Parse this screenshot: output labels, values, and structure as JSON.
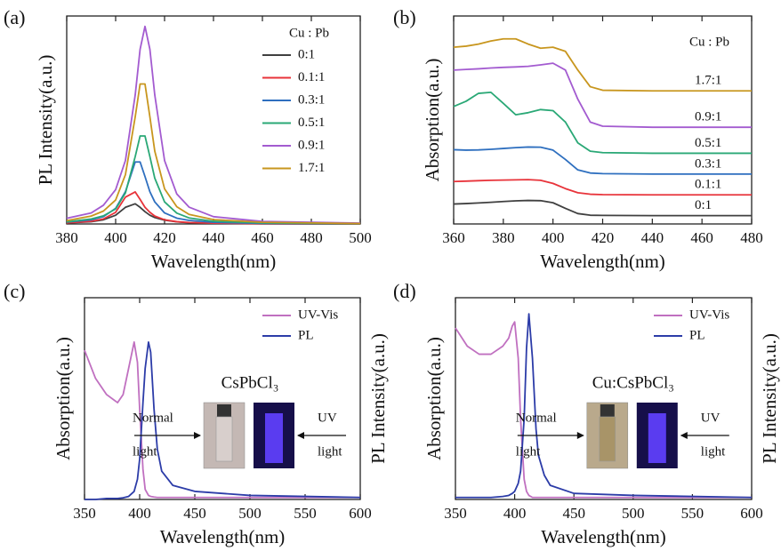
{
  "chart_data": [
    {
      "type": "line",
      "panel_label": "(a)",
      "xlabel": "Wavelength(nm)",
      "ylabel": "PL Intensity(a.u.)",
      "legend": "upper right",
      "legend_title": "Cu : Pb",
      "xlim": [
        380,
        500
      ],
      "xticks": [
        380,
        400,
        420,
        440,
        460,
        480,
        500
      ],
      "ylim": [
        0,
        100
      ],
      "x": [
        380,
        390,
        395,
        400,
        404,
        408,
        410,
        412,
        414,
        416,
        420,
        425,
        430,
        440,
        460,
        500
      ],
      "series": [
        {
          "name": "0:1",
          "color": "#404040",
          "values": [
            0.5,
            1.1,
            2,
            4.2,
            8,
            9.7,
            8,
            5.9,
            4.2,
            3.1,
            1.8,
            1,
            0.6,
            0.3,
            0.1,
            0
          ]
        },
        {
          "name": "0.1:1",
          "color": "#e8333a",
          "values": [
            0.5,
            1.3,
            2.4,
            5.6,
            12.9,
            15.4,
            11.8,
            8,
            5.6,
            3.8,
            2,
            1.1,
            0.7,
            0.4,
            0.1,
            0
          ]
        },
        {
          "name": "0.3:1",
          "color": "#2e6fbf",
          "values": [
            0.9,
            2,
            3.5,
            7.5,
            15.5,
            29.8,
            29.8,
            22.8,
            15.5,
            10.6,
            5.3,
            2.8,
            1.7,
            0.8,
            0.3,
            0.1
          ]
        },
        {
          "name": "0.5:1",
          "color": "#2aa876",
          "values": [
            1,
            2.4,
            3.9,
            7.2,
            14.9,
            32.4,
            42.3,
            42.3,
            32.4,
            22,
            10.6,
            5.2,
            2.9,
            1.3,
            0.5,
            0.1
          ]
        },
        {
          "name": "0.9:1",
          "color": "#a35bd0",
          "values": [
            2.7,
            5.3,
            9,
            16.5,
            30.5,
            62,
            84,
            95,
            84,
            62,
            30.5,
            14.4,
            8.1,
            3.5,
            1.2,
            0.4
          ]
        },
        {
          "name": "1.7:1",
          "color": "#c8961e",
          "values": [
            1.6,
            3.8,
            6.2,
            11.5,
            23.7,
            51.5,
            67.3,
            67.3,
            51.5,
            35,
            16.9,
            8.3,
            4.6,
            2.1,
            0.8,
            0.2
          ]
        }
      ]
    },
    {
      "type": "line",
      "panel_label": "(b)",
      "xlabel": "Wavelength(nm)",
      "ylabel": "Absorption(a.u.)",
      "legend": "inline",
      "legend_title": "Cu : Pb",
      "xlim": [
        360,
        480
      ],
      "xticks": [
        360,
        380,
        400,
        420,
        440,
        460,
        480
      ],
      "ylim": [
        0,
        100
      ],
      "x": [
        360,
        365,
        370,
        375,
        380,
        385,
        390,
        395,
        400,
        405,
        410,
        415,
        420,
        440,
        460,
        480
      ],
      "series": [
        {
          "name": "0:1",
          "color": "#404040",
          "values": [
            9.6,
            9.8,
            10.1,
            10.4,
            10.8,
            11.1,
            11.3,
            11.2,
            10.2,
            7.5,
            5,
            4.2,
            4.1,
            4,
            4,
            4
          ]
        },
        {
          "name": "0.1:1",
          "color": "#e8333a",
          "values": [
            20.4,
            20.6,
            20.8,
            21,
            21.1,
            21.2,
            21.3,
            21,
            19.5,
            17,
            15,
            14.3,
            14.1,
            14,
            14,
            14
          ]
        },
        {
          "name": "0.3:1",
          "color": "#2e6fbf",
          "values": [
            35.7,
            35.5,
            35.6,
            35.9,
            36.3,
            36.7,
            37,
            36.9,
            35.5,
            31,
            26,
            24.5,
            24.2,
            24,
            24,
            24
          ]
        },
        {
          "name": "0.5:1",
          "color": "#2aa876",
          "values": [
            56.5,
            59,
            62.8,
            63.3,
            58,
            52.5,
            53.5,
            55,
            54.5,
            49,
            39,
            35,
            34.3,
            34,
            34,
            34
          ]
        },
        {
          "name": "0.9:1",
          "color": "#a35bd0",
          "values": [
            74,
            74.3,
            74.6,
            75,
            75.3,
            75.5,
            75.8,
            76.5,
            77.3,
            74,
            60,
            49,
            47,
            46.5,
            46.5,
            46.5
          ]
        },
        {
          "name": "1.7:1",
          "color": "#c8961e",
          "values": [
            85,
            85.5,
            86.5,
            88,
            89,
            89,
            86.5,
            84.5,
            85,
            83,
            74,
            66,
            64.3,
            64,
            64,
            64
          ]
        }
      ]
    },
    {
      "type": "line",
      "panel_label": "(c)",
      "xlabel": "Wavelength(nm)",
      "ylabel": "Absorption(a.u.)",
      "y2label": "PL Intensity(a.u.)",
      "legend": "upper right",
      "inset_label": "CsPbCl₃",
      "annotations": [
        [
          "Normal",
          "light"
        ],
        [
          "UV",
          "light"
        ]
      ],
      "xlim": [
        350,
        600
      ],
      "xticks": [
        350,
        400,
        450,
        500,
        550,
        600
      ],
      "ylim": [
        0,
        100
      ],
      "y2lim": [
        0,
        100
      ],
      "x": [
        350,
        360,
        370,
        380,
        385,
        390,
        395,
        398,
        400,
        403,
        405,
        408,
        410,
        413,
        416,
        420,
        430,
        450,
        500,
        600
      ],
      "series": [
        {
          "name": "UV-Vis",
          "color": "#c070c0",
          "values": [
            74,
            60,
            52,
            48,
            52,
            65,
            78,
            68,
            45,
            15,
            5,
            2,
            1.5,
            1.2,
            1,
            1,
            1,
            1,
            1,
            1
          ]
        },
        {
          "name": "PL",
          "color": "#2c3ca8",
          "axis": "y2",
          "values": [
            0,
            0,
            0.5,
            0.5,
            0.8,
            1.5,
            4,
            10,
            20,
            48,
            65,
            78,
            73,
            45,
            25,
            14,
            7,
            4,
            2,
            1
          ]
        }
      ]
    },
    {
      "type": "line",
      "panel_label": "(d)",
      "xlabel": "Wavelength(nm)",
      "ylabel": "Absorption(a.u.)",
      "y2label": "PL Intensity(a.u.)",
      "legend": "upper right",
      "inset_label": "Cu:CsPbCl₃",
      "annotations": [
        [
          "Normal",
          "light"
        ],
        [
          "UV",
          "light"
        ]
      ],
      "xlim": [
        350,
        600
      ],
      "xticks": [
        350,
        400,
        450,
        500,
        550,
        600
      ],
      "ylim": [
        0,
        100
      ],
      "y2lim": [
        0,
        100
      ],
      "x": [
        350,
        360,
        370,
        380,
        390,
        395,
        398,
        400,
        403,
        405,
        408,
        410,
        412,
        415,
        418,
        420,
        425,
        430,
        450,
        500,
        600
      ],
      "series": [
        {
          "name": "UV-Vis",
          "color": "#c070c0",
          "values": [
            85,
            76,
            72,
            72,
            76,
            80,
            86,
            88,
            70,
            40,
            10,
            4,
            2,
            1,
            1,
            1,
            1,
            1,
            1,
            1,
            1
          ]
        },
        {
          "name": "PL",
          "color": "#2c3ca8",
          "axis": "y2",
          "values": [
            1,
            1,
            1,
            1,
            1.5,
            2,
            3,
            4,
            8,
            14,
            40,
            75,
            92,
            70,
            35,
            22,
            12,
            7,
            3,
            2,
            1
          ]
        }
      ]
    }
  ]
}
